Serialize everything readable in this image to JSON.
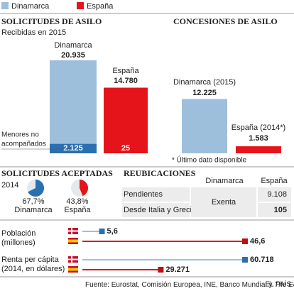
{
  "legend": {
    "items": [
      {
        "name": "Dinamarca",
        "color": "#9dbfdc",
        "dark": "#2a6fb0"
      },
      {
        "name": "España",
        "color": "#e5141b",
        "dark": "#c00d14"
      }
    ]
  },
  "requests": {
    "title": "SOLICITUDES DE ASILO",
    "subtitle": "Recibidas en 2015",
    "categories": [
      "Dinamarca",
      "España"
    ],
    "values": [
      20935,
      14780
    ],
    "value_labels": [
      "20.935",
      "14.780"
    ],
    "minors": {
      "label_lines": [
        "Menores no",
        "acompañados"
      ],
      "values": [
        2125,
        25
      ],
      "value_labels": [
        "2.125",
        "25"
      ]
    }
  },
  "grants": {
    "title": "CONCESIONES DE ASILO",
    "categories": [
      "Dinamarca (2015)",
      "España (2014*)"
    ],
    "values": [
      12225,
      1583
    ],
    "value_labels": [
      "12.225",
      "1.583"
    ],
    "note": "* Último dato disponible"
  },
  "accepted": {
    "title": "SOLICITUDES ACEPTADAS",
    "subtitle": "2014",
    "categories": [
      "Dinamarca",
      "España"
    ],
    "values": [
      67.7,
      43.8
    ],
    "value_labels": [
      "67,7%",
      "43,8%"
    ]
  },
  "relocations": {
    "title": "REUBICACIONES",
    "columns": [
      "Dinamarca",
      "España"
    ],
    "row_labels": [
      "Pendientes",
      "Desde Italia y Grecia"
    ],
    "denmark": "Exenta",
    "spain": [
      "9.108",
      "105"
    ]
  },
  "population": {
    "label_lines": [
      "Población",
      "(millones)"
    ],
    "values": [
      5.6,
      46.6
    ],
    "value_labels": [
      "5,6",
      "46,6"
    ]
  },
  "income": {
    "label_lines": [
      "Renta per cápita",
      "(2014, en dólares)"
    ],
    "values": [
      60718,
      29271
    ],
    "value_labels": [
      "60.718",
      "29.271"
    ]
  },
  "footer": {
    "source": [
      "Fuente: Eurostat, Comisión Europea, INE, Banco Mundial y",
      "The Economist",
      "."
    ],
    "brand": "EL PAÍS"
  }
}
